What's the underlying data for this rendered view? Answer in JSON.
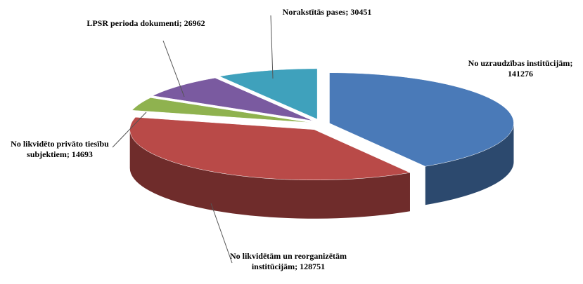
{
  "chart_data": {
    "type": "pie3d",
    "values": [
      141276,
      128751,
      14693,
      26962,
      30451
    ],
    "value_labels": [
      "No uzraudzības institūcijām; 141276",
      "No likvidētām un reorganizētām institūcijām; 128751",
      "No likvidēto privāto tiesību subjektiem; 14693",
      "LPSR perioda dokumenti; 26962",
      "Norakstītās pases; 30451"
    ],
    "colors": [
      "#4a7ab8",
      "#b94a48",
      "#8fb24f",
      "#7a5aa0",
      "#3fa1bc"
    ]
  }
}
